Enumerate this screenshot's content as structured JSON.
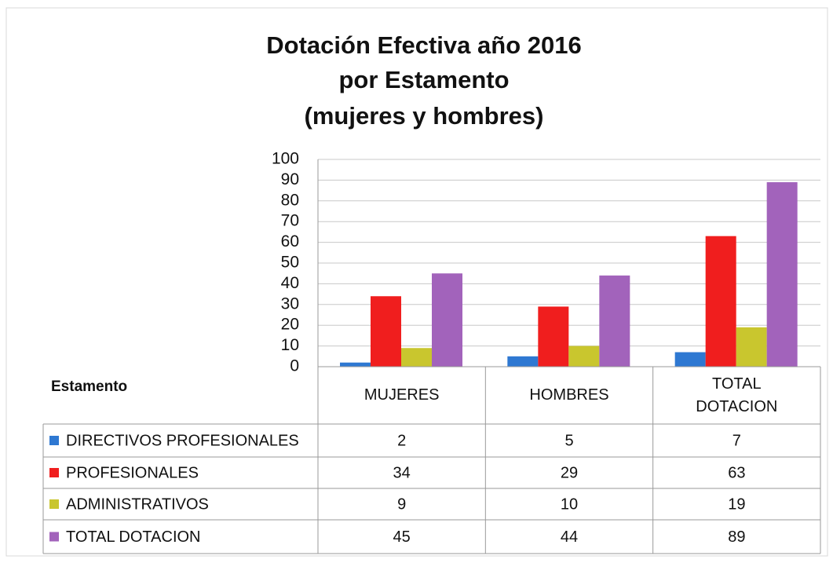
{
  "chart_data": {
    "type": "bar",
    "title": [
      "Dotación Efectiva año 2016",
      "por Estamento",
      "(mujeres y hombres)"
    ],
    "table_header": "Estamento",
    "categories": [
      "MUJERES",
      "HOMBRES",
      "TOTAL DOTACION"
    ],
    "series": [
      {
        "name": "DIRECTIVOS PROFESIONALES",
        "color": "#2e78d2",
        "values": [
          2,
          5,
          7
        ]
      },
      {
        "name": "PROFESIONALES",
        "color": "#f01e1e",
        "values": [
          34,
          29,
          63
        ]
      },
      {
        "name": "ADMINISTRATIVOS",
        "color": "#c9c62e",
        "values": [
          9,
          10,
          19
        ]
      },
      {
        "name": "TOTAL DOTACION",
        "color": "#a263bb",
        "values": [
          45,
          44,
          89
        ]
      }
    ],
    "ylim": [
      0,
      100
    ],
    "yticks": [
      0,
      10,
      20,
      30,
      40,
      50,
      60,
      70,
      80,
      90,
      100
    ],
    "grid": true
  }
}
